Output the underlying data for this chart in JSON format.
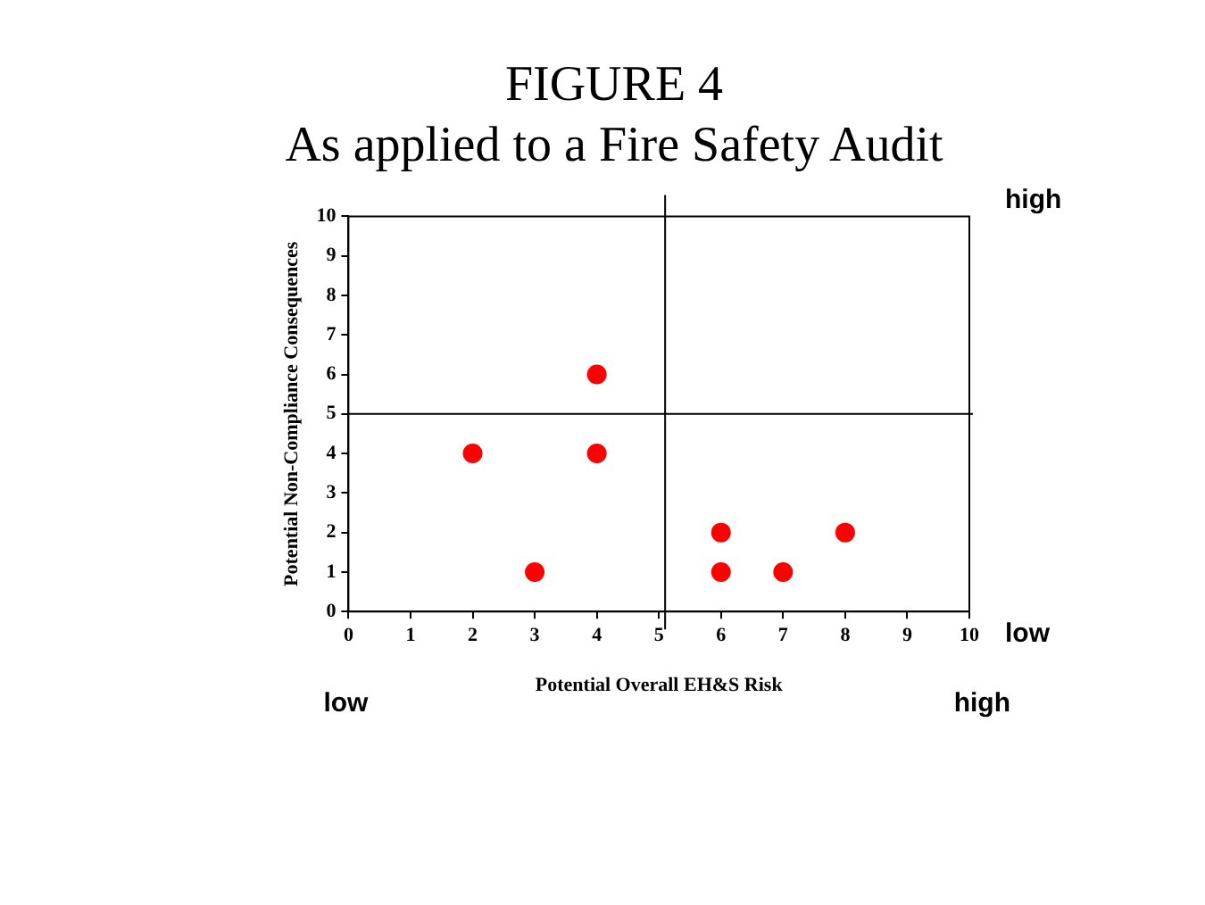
{
  "chart_data": {
    "type": "scatter",
    "title": "FIGURE 4",
    "subtitle": "As applied to a Fire Safety Audit",
    "xlabel": "Potential Overall EH&S Risk",
    "ylabel": "Potential Non-Compliance Consequences",
    "x": [
      2,
      3,
      4,
      4,
      6,
      6,
      7,
      8
    ],
    "values": [
      4,
      1,
      6,
      4,
      2,
      1,
      1,
      2
    ],
    "color": "#ff0000",
    "marker": "circle",
    "xlim": [
      0,
      10
    ],
    "xticks": [
      0,
      1,
      2,
      3,
      4,
      5,
      6,
      7,
      8,
      9,
      10
    ],
    "ylim": [
      0,
      10
    ],
    "yticks": [
      0,
      1,
      2,
      3,
      4,
      5,
      6,
      7,
      8,
      9,
      10
    ],
    "grid": false,
    "legend": false,
    "ref_lines": [
      {
        "axis": "x",
        "value": 5.1,
        "color": "#000000"
      },
      {
        "axis": "y",
        "value": 5,
        "color": "#000000"
      }
    ],
    "annotations": [
      "high",
      "low",
      "low",
      "high"
    ]
  }
}
